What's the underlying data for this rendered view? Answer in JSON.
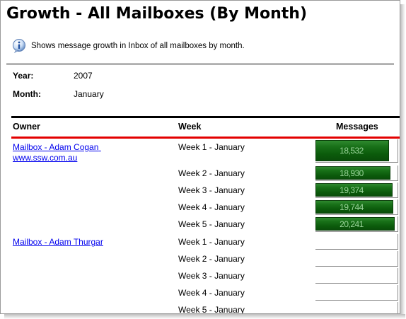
{
  "page": {
    "title": "Growth - All Mailboxes (By Month)",
    "description": "Shows message growth in Inbox of all mailboxes by month."
  },
  "filters": {
    "year_label": "Year:",
    "year_value": "2007",
    "month_label": "Month:",
    "month_value": "January"
  },
  "table": {
    "headers": {
      "owner": "Owner",
      "week": "Week",
      "messages": "Messages"
    },
    "rows": [
      {
        "owner": "Mailbox - Adam Cogan",
        "owner_sub": "www.ssw.com.au",
        "week": "Week 1 - January",
        "messages": "18,532",
        "fill": 0.93
      },
      {
        "week": "Week 2 - January",
        "messages": "18,930",
        "fill": 0.95
      },
      {
        "week": "Week 3 - January",
        "messages": "19,374",
        "fill": 0.97
      },
      {
        "week": "Week 4 - January",
        "messages": "19,744",
        "fill": 0.98
      },
      {
        "week": "Week 5 - January",
        "messages": "20,241",
        "fill": 1.0
      },
      {
        "owner": "Mailbox - Adam Thurgar",
        "week": "Week 1 - January",
        "messages": "",
        "fill": 0
      },
      {
        "week": "Week 2 - January",
        "messages": "",
        "fill": 0
      },
      {
        "week": "Week 3 - January",
        "messages": "",
        "fill": 0
      },
      {
        "week": "Week 4 - January",
        "messages": "",
        "fill": 0
      },
      {
        "week": "Week 5 - January",
        "messages": "",
        "fill": 0
      }
    ]
  },
  "colors": {
    "separator_red": "#e30000",
    "bar_green": "#187018",
    "bar_text": "#9bd49b",
    "link": "#0000ee"
  },
  "icons": {
    "info": "info-icon"
  }
}
